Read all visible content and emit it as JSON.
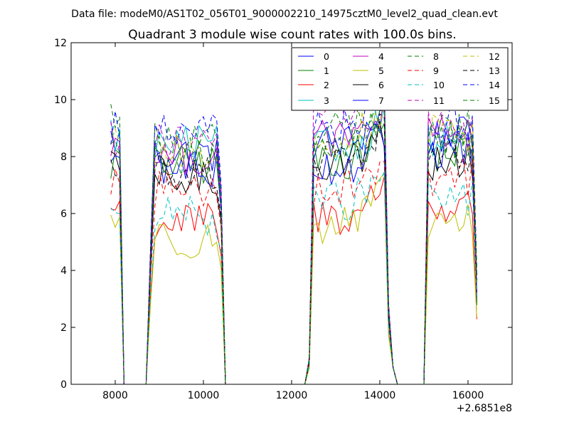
{
  "suptitle": "Data file: modeM0/AS1T02_056T01_9000002210_14975cztM0_level2_quad_clean.evt",
  "chart_data": {
    "type": "line",
    "title": "Quadrant 3 module wise count rates with 100.0s bins.",
    "xlabel": "",
    "ylabel": "",
    "xlim": [
      7000,
      17000
    ],
    "ylim": [
      0,
      12
    ],
    "x_ticks": [
      8000,
      10000,
      12000,
      14000,
      16000
    ],
    "x_tick_labels": [
      "8000",
      "10000",
      "12000",
      "14000",
      "16000"
    ],
    "y_ticks": [
      0,
      2,
      4,
      6,
      8,
      10,
      12
    ],
    "y_tick_labels": [
      "0",
      "2",
      "4",
      "6",
      "8",
      "10",
      "12"
    ],
    "x_offset_label": "+2.6851e8",
    "grid": false,
    "legend_position": "top-right",
    "legend_columns": 4,
    "segments": [
      {
        "start": 7900,
        "end": 8100,
        "zero_before": [],
        "zero_after": [
          8200,
          8300,
          8400,
          8500,
          8600,
          8700
        ]
      },
      {
        "start": 8800,
        "end": 10400,
        "zero_before": [
          8700
        ],
        "zero_after": [
          10500
        ]
      },
      {
        "start": 12400,
        "end": 14200,
        "zero_before": [
          10500,
          10600,
          10700,
          10800,
          10900,
          11000,
          11100,
          11200,
          11300,
          11400,
          11500,
          11600,
          11700,
          11800,
          11900,
          12000,
          12100,
          12200,
          12300
        ],
        "zero_after": [
          14400,
          14500,
          14600,
          14700,
          14800,
          14900,
          15000
        ]
      },
      {
        "start": 15100,
        "end": 16200,
        "zero_before": [
          15000
        ],
        "zero_after": []
      }
    ],
    "series": [
      {
        "name": "0",
        "color": "#0000ff",
        "dash": "solid",
        "levels": [
          8.6,
          8.1,
          8.5,
          8.7
        ]
      },
      {
        "name": "1",
        "color": "#008000",
        "dash": "solid",
        "levels": [
          7.8,
          7.7,
          7.9,
          8.1
        ]
      },
      {
        "name": "2",
        "color": "#ff0000",
        "dash": "solid",
        "levels": [
          6.2,
          5.7,
          5.9,
          6.2
        ]
      },
      {
        "name": "3",
        "color": "#00bfbf",
        "dash": "solid",
        "levels": [
          8.8,
          8.4,
          8.3,
          8.6
        ]
      },
      {
        "name": "4",
        "color": "#bf00bf",
        "dash": "solid",
        "levels": [
          8.4,
          8.0,
          8.6,
          8.7
        ]
      },
      {
        "name": "5",
        "color": "#bfbf00",
        "dash": "solid",
        "levels": [
          5.8,
          5.1,
          5.6,
          5.7
        ]
      },
      {
        "name": "6",
        "color": "#000000",
        "dash": "solid",
        "levels": [
          7.5,
          7.2,
          7.8,
          7.8
        ]
      },
      {
        "name": "7",
        "color": "#0000ff",
        "dash": "solid",
        "levels": [
          8.0,
          7.6,
          7.7,
          8.2
        ]
      },
      {
        "name": "8",
        "color": "#008000",
        "dash": "dashed",
        "levels": [
          9.5,
          8.6,
          9.0,
          9.0
        ]
      },
      {
        "name": "9",
        "color": "#ff0000",
        "dash": "dashed",
        "levels": [
          7.2,
          6.9,
          6.9,
          7.3
        ]
      },
      {
        "name": "10",
        "color": "#00bfbf",
        "dash": "dashed",
        "levels": [
          6.2,
          5.9,
          6.4,
          6.6
        ]
      },
      {
        "name": "11",
        "color": "#bf00bf",
        "dash": "dashed",
        "levels": [
          8.7,
          8.5,
          9.6,
          8.9
        ]
      },
      {
        "name": "12",
        "color": "#bfbf00",
        "dash": "dashed",
        "levels": [
          8.8,
          8.1,
          8.6,
          8.8
        ]
      },
      {
        "name": "13",
        "color": "#000000",
        "dash": "dashed",
        "levels": [
          7.7,
          7.4,
          7.9,
          8.1
        ]
      },
      {
        "name": "14",
        "color": "#0000ff",
        "dash": "dashed",
        "levels": [
          9.1,
          8.8,
          9.0,
          9.2
        ]
      },
      {
        "name": "15",
        "color": "#008000",
        "dash": "dashed",
        "levels": [
          8.6,
          8.0,
          8.4,
          8.6
        ]
      }
    ]
  }
}
